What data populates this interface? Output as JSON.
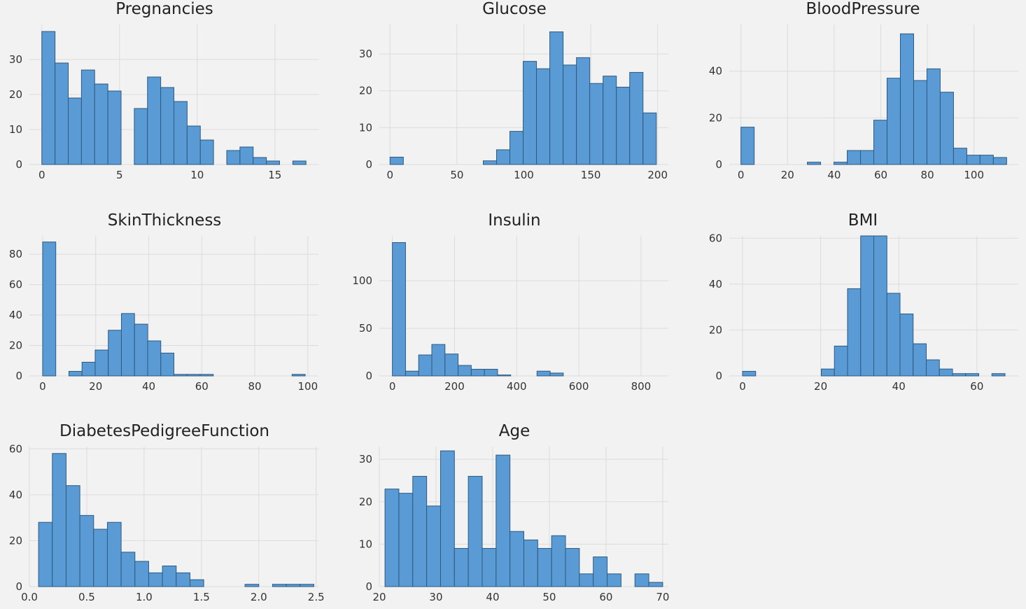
{
  "colors": {
    "background": "#f2f2f2",
    "bar_fill": "#5b9bd5",
    "bar_edge": "#2c5a80",
    "grid": "#dcdcdc"
  },
  "chart_data": [
    {
      "type": "bar",
      "title": "Pregnancies",
      "grid": true,
      "bin_edges": [
        0,
        0.85,
        1.7,
        2.55,
        3.4,
        4.25,
        5.1,
        5.95,
        6.8,
        7.65,
        8.5,
        9.35,
        10.2,
        11.05,
        11.9,
        12.75,
        13.6,
        14.45,
        15.3,
        16.15,
        17
      ],
      "values": [
        38,
        29,
        19,
        27,
        23,
        21,
        0,
        16,
        25,
        22,
        18,
        11,
        7,
        0,
        4,
        5,
        2,
        1,
        0,
        1
      ],
      "xlim": [
        -0.8,
        17.8
      ],
      "ylim": [
        0,
        40
      ],
      "xticks": [
        0,
        5,
        10,
        15
      ],
      "yticks": [
        0,
        10,
        20,
        30
      ]
    },
    {
      "type": "bar",
      "title": "Glucose",
      "grid": true,
      "bin_edges": [
        0,
        9.95,
        19.9,
        29.85,
        39.8,
        49.75,
        59.7,
        69.65,
        79.6,
        89.55,
        99.5,
        109.45,
        119.4,
        129.35,
        139.3,
        149.25,
        159.2,
        169.15,
        179.1,
        189.05,
        199
      ],
      "values": [
        2,
        0,
        0,
        0,
        0,
        0,
        0,
        1,
        4,
        9,
        28,
        26,
        36,
        27,
        29,
        22,
        24,
        21,
        25,
        14
      ],
      "xlim": [
        -8,
        208
      ],
      "ylim": [
        0,
        38
      ],
      "xticks": [
        0,
        50,
        100,
        150,
        200
      ],
      "yticks": [
        0,
        10,
        20,
        30
      ]
    },
    {
      "type": "bar",
      "title": "BloodPressure",
      "grid": true,
      "bin_edges": [
        0,
        5.7,
        11.4,
        17.1,
        22.8,
        28.5,
        34.2,
        39.9,
        45.6,
        51.3,
        57,
        62.7,
        68.4,
        74.1,
        79.8,
        85.5,
        91.2,
        96.9,
        102.6,
        108.3,
        114
      ],
      "values": [
        16,
        0,
        0,
        0,
        0,
        1,
        0,
        1,
        6,
        6,
        19,
        37,
        56,
        36,
        41,
        31,
        7,
        4,
        4,
        3
      ],
      "xlim": [
        -5,
        119
      ],
      "ylim": [
        0,
        60
      ],
      "xticks": [
        0,
        20,
        40,
        60,
        80,
        100
      ],
      "yticks": [
        0,
        20,
        40
      ]
    },
    {
      "type": "bar",
      "title": "SkinThickness",
      "grid": true,
      "bin_edges": [
        0,
        4.95,
        9.9,
        14.85,
        19.8,
        24.75,
        29.7,
        34.65,
        39.6,
        44.55,
        49.5,
        54.45,
        59.4,
        64.35,
        69.3,
        74.25,
        79.2,
        84.15,
        89.1,
        94.05,
        99
      ],
      "values": [
        88,
        0,
        3,
        9,
        17,
        30,
        41,
        34,
        23,
        15,
        1,
        1,
        1,
        0,
        0,
        0,
        0,
        0,
        0,
        1
      ],
      "xlim": [
        -5,
        104
      ],
      "ylim": [
        0,
        92
      ],
      "xticks": [
        0,
        20,
        40,
        60,
        80,
        100
      ],
      "yticks": [
        0,
        20,
        40,
        60,
        80
      ]
    },
    {
      "type": "bar",
      "title": "Insulin",
      "grid": true,
      "bin_edges": [
        0,
        42.3,
        84.6,
        126.9,
        169.2,
        211.5,
        253.8,
        296.1,
        338.4,
        380.7,
        423,
        465.3,
        507.6,
        549.9,
        592.2,
        634.5,
        676.8,
        719.1,
        761.4,
        803.7,
        846
      ],
      "values": [
        140,
        5,
        22,
        33,
        23,
        11,
        7,
        7,
        1,
        0,
        0,
        5,
        3,
        0,
        0,
        0,
        0,
        0,
        0,
        0
      ],
      "xlim": [
        -42,
        888
      ],
      "ylim": [
        0,
        147
      ],
      "xticks": [
        0,
        200,
        400,
        600,
        800
      ],
      "yticks": [
        0,
        50,
        100
      ]
    },
    {
      "type": "bar",
      "title": "BMI",
      "grid": true,
      "bin_edges": [
        0,
        3.36,
        6.72,
        10.08,
        13.44,
        16.8,
        20.16,
        23.52,
        26.88,
        30.24,
        33.6,
        36.96,
        40.32,
        43.68,
        47.04,
        50.4,
        53.76,
        57.12,
        60.48,
        63.84,
        67.2
      ],
      "values": [
        2,
        0,
        0,
        0,
        0,
        0,
        3,
        13,
        38,
        61,
        61,
        36,
        27,
        14,
        7,
        3,
        1,
        1,
        0,
        1
      ],
      "xlim": [
        -3.4,
        70.6
      ],
      "ylim": [
        0,
        61
      ],
      "xticks": [
        0,
        20,
        40,
        60
      ],
      "yticks": [
        0,
        20,
        40,
        60
      ]
    },
    {
      "type": "bar",
      "title": "DiabetesPedigreeFunction",
      "grid": true,
      "bin_edges": [
        0.08,
        0.2,
        0.32,
        0.44,
        0.56,
        0.68,
        0.8,
        0.92,
        1.04,
        1.16,
        1.28,
        1.4,
        1.52,
        1.64,
        1.76,
        1.88,
        2.0,
        2.12,
        2.24,
        2.36,
        2.48
      ],
      "values": [
        28,
        58,
        44,
        31,
        25,
        28,
        15,
        11,
        6,
        9,
        6,
        3,
        0,
        0,
        0,
        1,
        0,
        1,
        1,
        1
      ],
      "xlim": [
        0,
        2.52
      ],
      "ylim": [
        0,
        61
      ],
      "xticks": [
        0.0,
        0.5,
        1.0,
        1.5,
        2.0,
        2.5
      ],
      "yticks": [
        0,
        20,
        40,
        60
      ],
      "xtick_labels": [
        "0.0",
        "0.5",
        "1.0",
        "1.5",
        "2.0",
        "2.5"
      ]
    },
    {
      "type": "bar",
      "title": "Age",
      "grid": true,
      "bin_edges": [
        21,
        23.45,
        25.9,
        28.35,
        30.8,
        33.25,
        35.7,
        38.15,
        40.6,
        43.05,
        45.5,
        47.95,
        50.4,
        52.85,
        55.3,
        57.75,
        60.2,
        62.65,
        65.1,
        67.55,
        70
      ],
      "values": [
        23,
        22,
        26,
        19,
        32,
        9,
        26,
        9,
        31,
        13,
        11,
        9,
        12,
        9,
        3,
        7,
        3,
        0,
        3,
        1
      ],
      "xlim": [
        20,
        71
      ],
      "ylim": [
        0,
        33
      ],
      "xticks": [
        20,
        30,
        40,
        50,
        60,
        70
      ],
      "yticks": [
        0,
        10,
        20,
        30
      ]
    }
  ]
}
